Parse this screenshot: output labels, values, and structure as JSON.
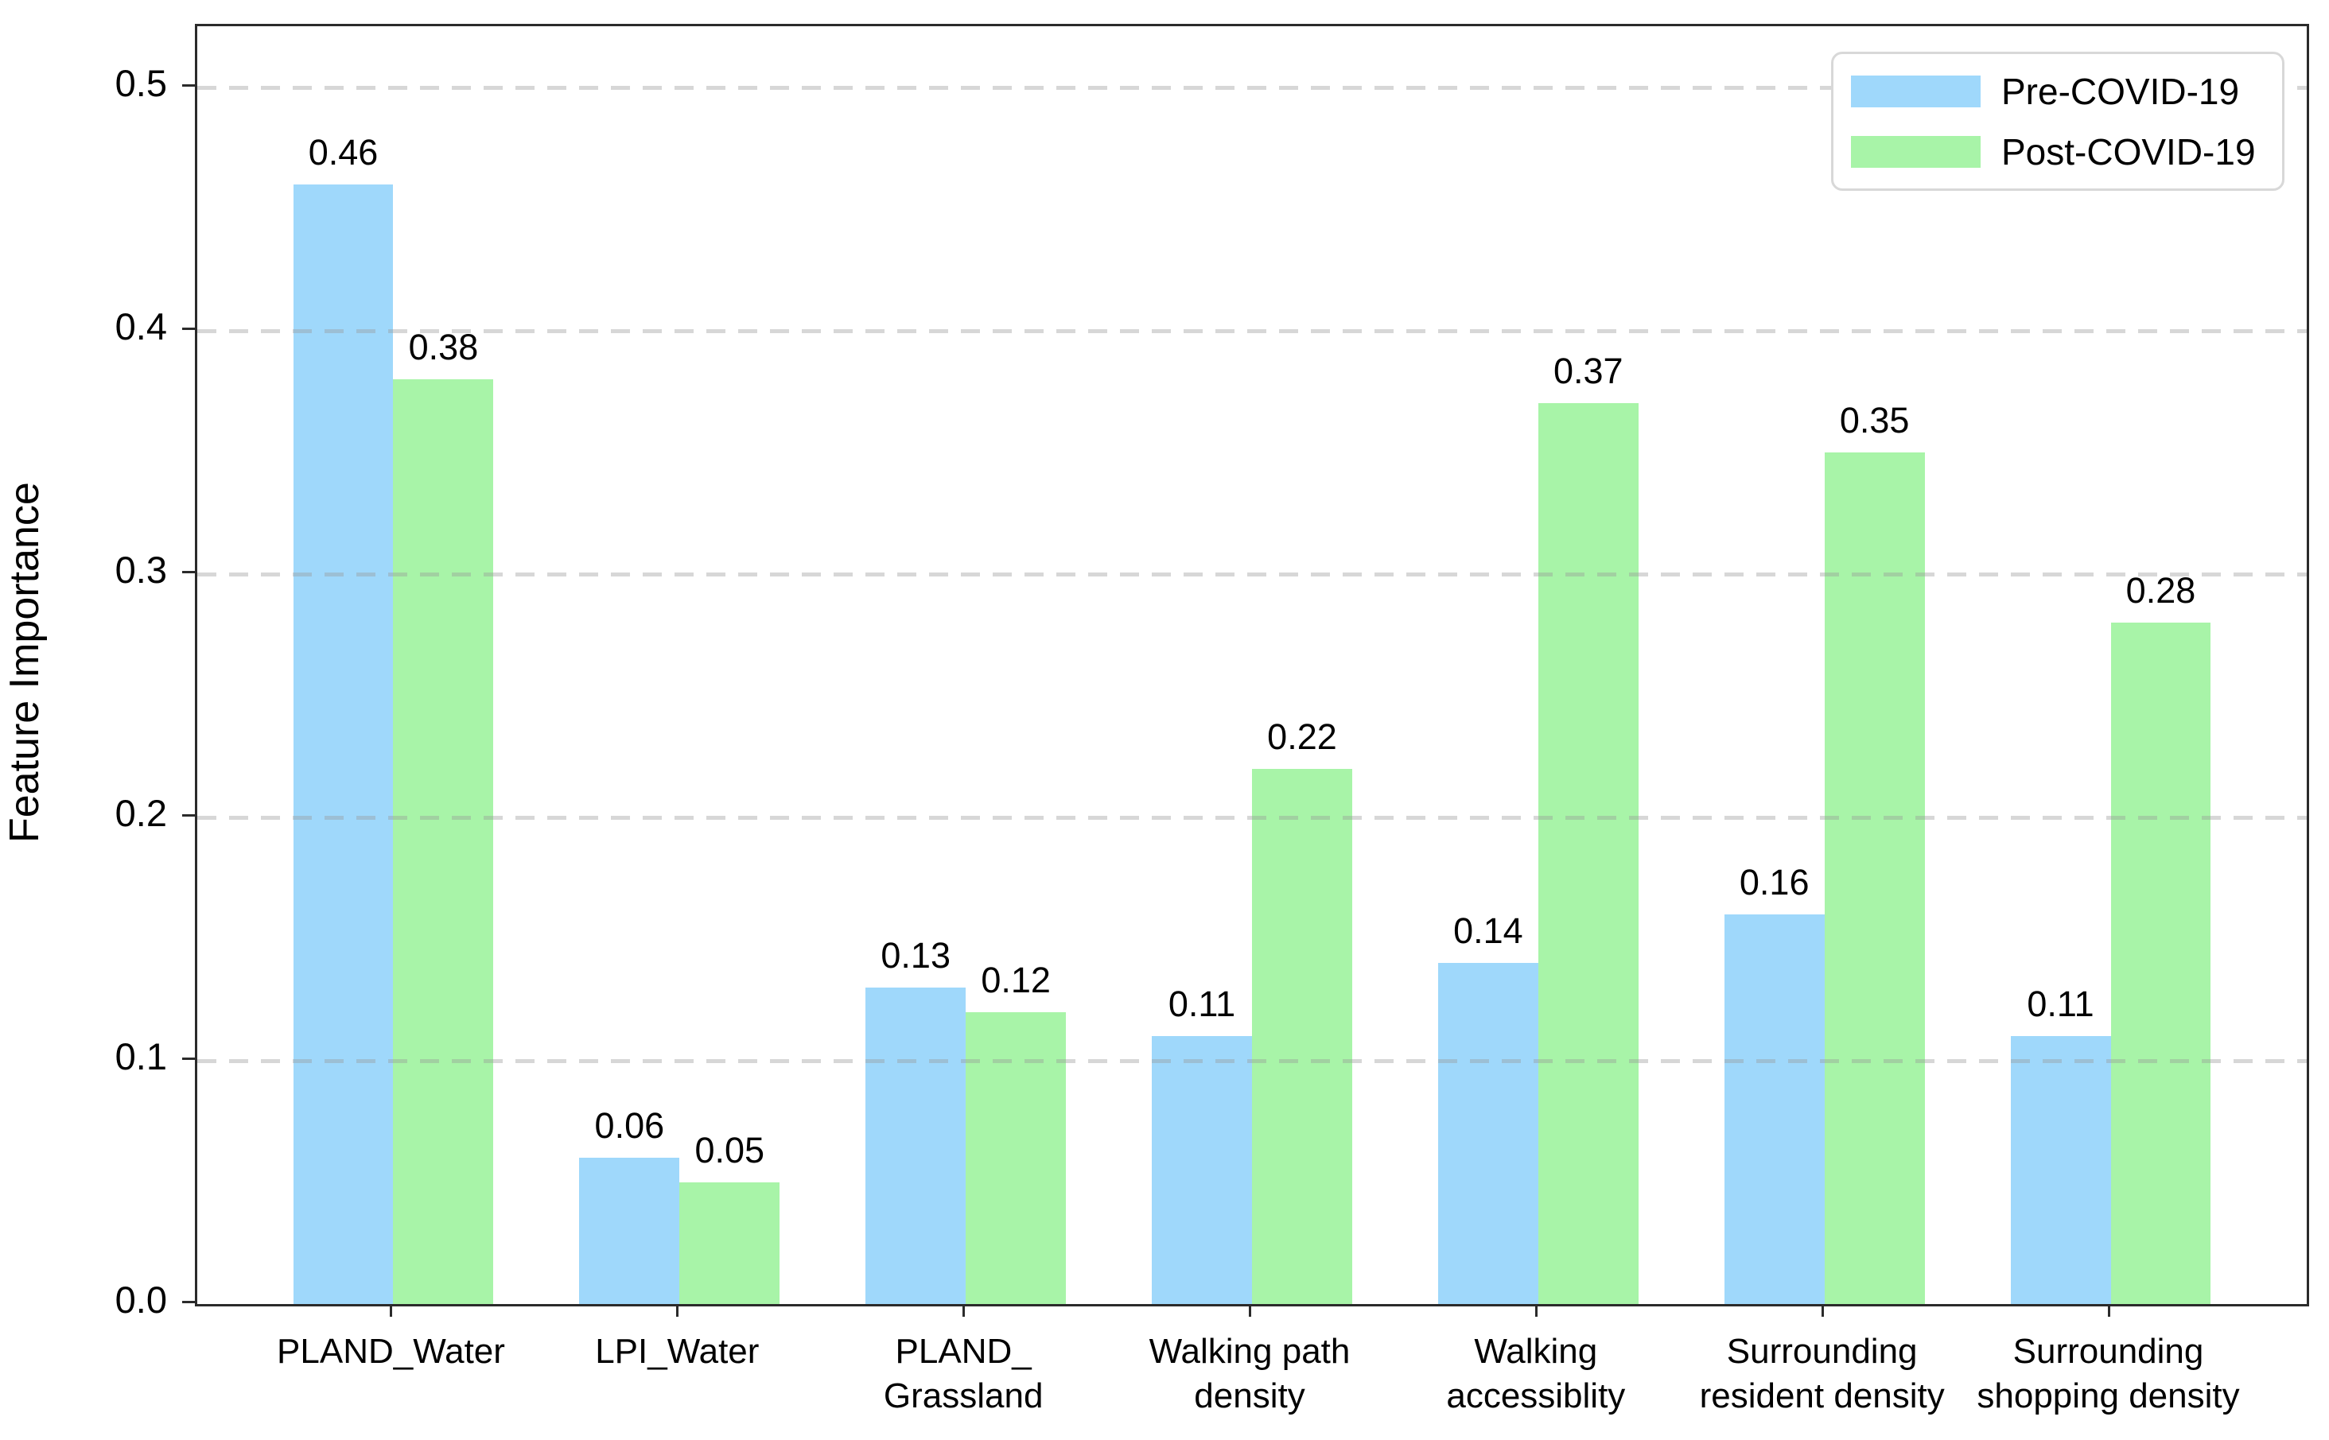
{
  "chart_data": {
    "type": "bar",
    "title": "",
    "xlabel": "",
    "ylabel": "Feature Importance",
    "categories": [
      [
        "PLAND_Water"
      ],
      [
        "LPI_Water"
      ],
      [
        "PLAND_",
        "Grassland"
      ],
      [
        "Walking path",
        "density"
      ],
      [
        "Walking",
        "accessiblity"
      ],
      [
        "Surrounding",
        "resident density"
      ],
      [
        "Surrounding",
        "shopping density"
      ]
    ],
    "series": [
      {
        "name": "Pre-COVID-19",
        "color": "#9fd8fb",
        "values": [
          0.46,
          0.06,
          0.13,
          0.11,
          0.14,
          0.16,
          0.11
        ]
      },
      {
        "name": "Post-COVID-19",
        "color": "#a8f4a8",
        "values": [
          0.38,
          0.05,
          0.12,
          0.22,
          0.37,
          0.35,
          0.28
        ]
      }
    ],
    "value_labels": {
      "Pre-COVID-19": [
        "0.46",
        "0.06",
        "0.13",
        "0.11",
        "0.14",
        "0.16",
        "0.11"
      ],
      "Post-COVID-19": [
        "0.38",
        "0.05",
        "0.12",
        "0.22",
        "0.37",
        "0.35",
        "0.28"
      ]
    },
    "yticks": [
      "0.0",
      "0.1",
      "0.2",
      "0.3",
      "0.4",
      "0.5"
    ],
    "ytick_values": [
      0.0,
      0.1,
      0.2,
      0.3,
      0.4,
      0.5
    ],
    "ylim": [
      0,
      0.525
    ],
    "xlim": [
      -0.685,
      6.685
    ],
    "bar_width_units": 0.35,
    "grid": "horizontal-dashed",
    "legend_position": "upper-right",
    "colors": {
      "pre_covid_bar": "#9fd8fb",
      "post_covid_bar": "#a8f4a8",
      "spine": "#2b2b2b",
      "gridline": "#e2e2e2",
      "legend_border": "#d8d8d8",
      "text": "#000000"
    }
  }
}
